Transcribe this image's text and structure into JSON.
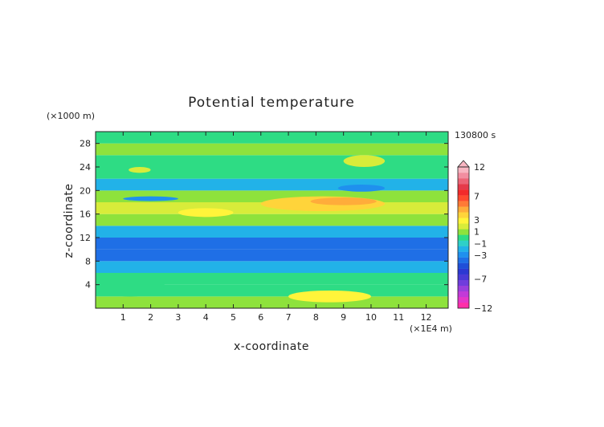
{
  "chart_data": {
    "type": "heatmap",
    "title": "Potential temperature",
    "xlabel": "x-coordinate",
    "ylabel": "z-coordinate",
    "x_unit": "(×1E4 m)",
    "y_unit": "(×1000 m)",
    "time_label": "130800 s",
    "xlim": [
      0,
      12.8
    ],
    "ylim": [
      0,
      30
    ],
    "x_ticks": [
      1,
      2,
      3,
      4,
      5,
      6,
      7,
      8,
      9,
      10,
      11,
      12
    ],
    "y_ticks": [
      4,
      8,
      12,
      16,
      20,
      24,
      28
    ],
    "colorbar": {
      "levels": [
        -12,
        -11,
        -10,
        -9,
        -8,
        -7,
        -6,
        -5,
        -4,
        -3,
        -2,
        -1,
        0,
        1,
        2,
        3,
        4,
        5,
        6,
        7,
        8,
        9,
        10,
        11,
        12
      ],
      "colors": [
        "#ff2fa8",
        "#e536c8",
        "#c23ad8",
        "#9a3fdc",
        "#6f3ddc",
        "#4a3ad6",
        "#2c38d2",
        "#1f4fd8",
        "#1f6fe6",
        "#1f90ee",
        "#22b2e8",
        "#2ed0c8",
        "#2edc84",
        "#8ee23c",
        "#d8ec3a",
        "#fff43a",
        "#ffd43a",
        "#ffac3a",
        "#ff7a36",
        "#ff4a2e",
        "#f22a2a",
        "#e53a4a",
        "#ec6476",
        "#f28ea0",
        "#f8b6c2"
      ],
      "tick_labels": [
        "12",
        "7",
        "3",
        "1",
        "−1",
        "−3",
        "−7",
        "−12"
      ],
      "tick_values": [
        12,
        7,
        3,
        1,
        -1,
        -3,
        -7,
        -12
      ]
    },
    "bands": [
      {
        "z": [
          0,
          2
        ],
        "value": 1.5
      },
      {
        "z": [
          2,
          4
        ],
        "value": 0.5
      },
      {
        "z": [
          4,
          6
        ],
        "value": 0.5
      },
      {
        "z": [
          6,
          8
        ],
        "value": -1.5
      },
      {
        "z": [
          8,
          10
        ],
        "value": -3.5
      },
      {
        "z": [
          10,
          12
        ],
        "value": -3.5
      },
      {
        "z": [
          12,
          14
        ],
        "value": -1.5
      },
      {
        "z": [
          14,
          16
        ],
        "value": 1
      },
      {
        "z": [
          16,
          18
        ],
        "value": 2.5
      },
      {
        "z": [
          18,
          20
        ],
        "value": 1
      },
      {
        "z": [
          20,
          22
        ],
        "value": -1.5
      },
      {
        "z": [
          22,
          24
        ],
        "value": 0.5
      },
      {
        "z": [
          24,
          26
        ],
        "value": 0.5
      },
      {
        "z": [
          26,
          28
        ],
        "value": 1.5
      },
      {
        "z": [
          28,
          30
        ],
        "value": 0.5
      }
    ],
    "features": [
      {
        "x": [
          6,
          10.5
        ],
        "z": [
          16.5,
          19
        ],
        "value": 4
      },
      {
        "x": [
          7.8,
          10.2
        ],
        "z": [
          17.5,
          18.8
        ],
        "value": 5.5
      },
      {
        "x": [
          1,
          3
        ],
        "z": [
          18.2,
          19
        ],
        "value": -3
      },
      {
        "x": [
          7,
          10
        ],
        "z": [
          1,
          3
        ],
        "value": 3
      },
      {
        "x": [
          3,
          5
        ],
        "z": [
          15.5,
          17
        ],
        "value": 3
      },
      {
        "x": [
          8.8,
          10.5
        ],
        "z": [
          19.8,
          21
        ],
        "value": -3
      },
      {
        "x": [
          0,
          2.5
        ],
        "z": [
          2,
          6
        ],
        "value": 0
      },
      {
        "x": [
          1.2,
          2
        ],
        "z": [
          23,
          24
        ],
        "value": 2
      },
      {
        "x": [
          9,
          10.5
        ],
        "z": [
          24,
          26
        ],
        "value": 2
      }
    ]
  }
}
